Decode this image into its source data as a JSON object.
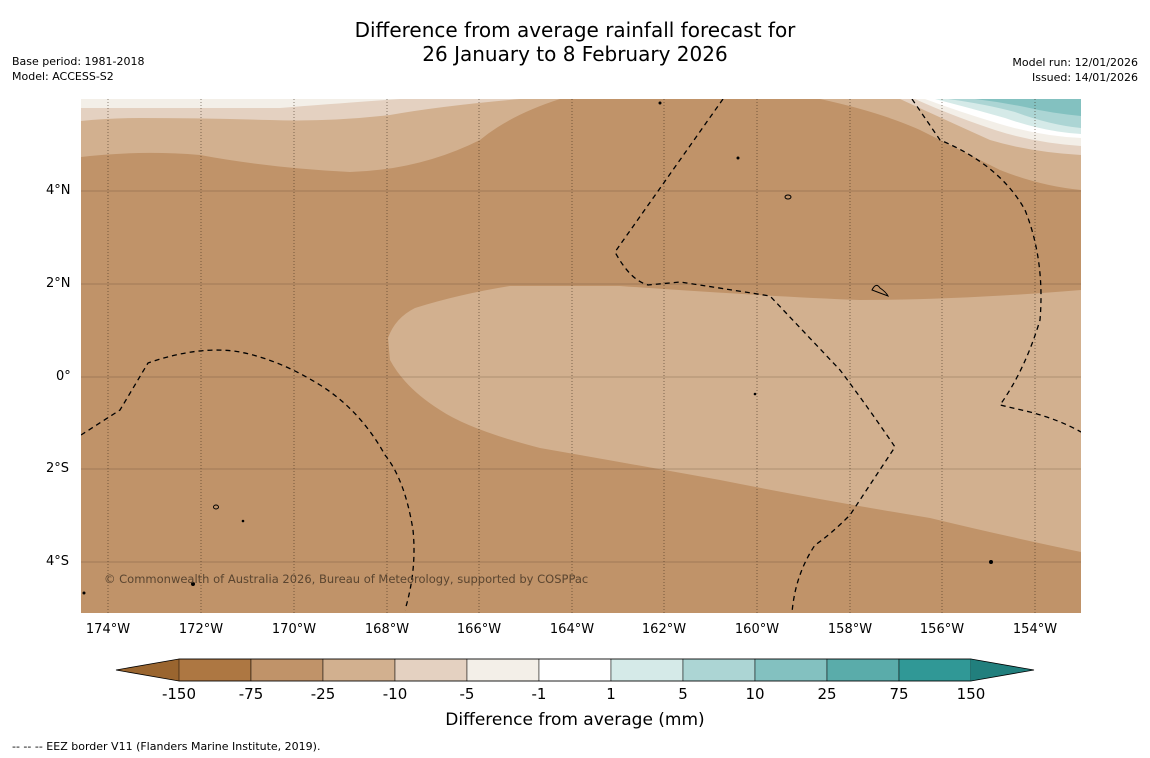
{
  "title": {
    "line1": "Difference from average rainfall forecast for",
    "line2": "26 January to 8 February 2026"
  },
  "meta_left": {
    "base_period": "Base period: 1981-2018",
    "model": "Model: ACCESS-S2"
  },
  "meta_right": {
    "model_run": "Model run: 12/01/2026",
    "issued": "Issued: 14/01/2026"
  },
  "map": {
    "copyright": "© Commonwealth of Australia 2026, Bureau of Meteorology, supported by COSPPac",
    "lat_labels": [
      "4°N",
      "2°N",
      "0°",
      "2°S",
      "4°S"
    ],
    "lon_labels": [
      "174°W",
      "172°W",
      "170°W",
      "168°W",
      "166°W",
      "164°W",
      "162°W",
      "160°W",
      "158°W",
      "156°W",
      "154°W"
    ]
  },
  "legend": {
    "title": "Difference from average (mm)",
    "ticks": [
      "-150",
      "-75",
      "-25",
      "-10",
      "-5",
      "-1",
      "1",
      "5",
      "10",
      "25",
      "75",
      "150"
    ],
    "colors": [
      "#ad7742",
      "#c09369",
      "#d2b08f",
      "#e4d1c1",
      "#f3efe8",
      "#ffffff",
      "#d5eae8",
      "#acd5d4",
      "#83c1c0",
      "#5aacaa",
      "#309896"
    ],
    "under_color": "#9a652f",
    "over_color": "#217f7d"
  },
  "footnote": "--  --  -- EEZ border V11 (Flanders Marine Institute, 2019)."
}
